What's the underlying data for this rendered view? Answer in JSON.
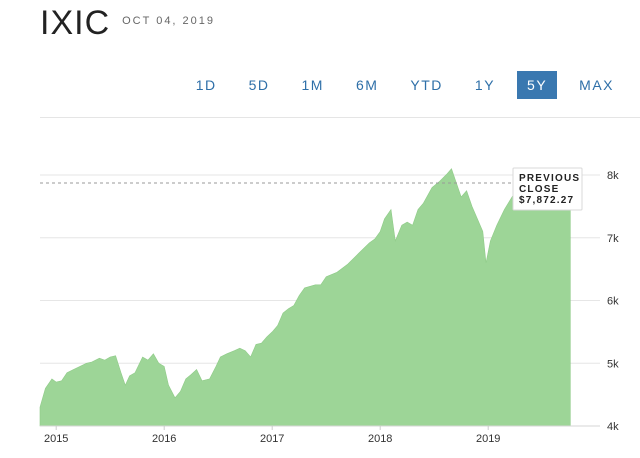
{
  "header": {
    "ticker": "IXIC",
    "date": "OCT 04, 2019"
  },
  "ranges": [
    {
      "label": "1D",
      "active": false
    },
    {
      "label": "5D",
      "active": false
    },
    {
      "label": "1M",
      "active": false
    },
    {
      "label": "6M",
      "active": false
    },
    {
      "label": "YTD",
      "active": false
    },
    {
      "label": "1Y",
      "active": false
    },
    {
      "label": "5Y",
      "active": true
    },
    {
      "label": "MAX",
      "active": false
    }
  ],
  "colors": {
    "area_fill": "#9dd597",
    "active_range": "#3a78b0",
    "range_text": "#2e6fa8"
  },
  "callout": {
    "line1": "PREVIOUS",
    "line2": "CLOSE",
    "value_label": "$7,872.27",
    "value": 7872.27
  },
  "chart_data": {
    "type": "area",
    "xlabel": "",
    "ylabel": "",
    "ylim": [
      4000,
      8000
    ],
    "xlim": [
      2014.85,
      2019.85
    ],
    "x_ticks": [
      2015,
      2016,
      2017,
      2018,
      2019
    ],
    "x_tick_labels": [
      "2015",
      "2016",
      "2017",
      "2018",
      "2019"
    ],
    "y_ticks": [
      4000,
      5000,
      6000,
      7000,
      8000
    ],
    "y_tick_labels": [
      "4k",
      "5k",
      "6k",
      "7k",
      "8k"
    ],
    "grid": "horizontal",
    "x": [
      2014.85,
      2014.9,
      2014.96,
      2015.0,
      2015.05,
      2015.1,
      2015.16,
      2015.22,
      2015.28,
      2015.33,
      2015.4,
      2015.45,
      2015.5,
      2015.55,
      2015.6,
      2015.64,
      2015.68,
      2015.73,
      2015.8,
      2015.85,
      2015.9,
      2015.95,
      2016.0,
      2016.04,
      2016.1,
      2016.15,
      2016.2,
      2016.25,
      2016.3,
      2016.35,
      2016.42,
      2016.48,
      2016.52,
      2016.58,
      2016.65,
      2016.7,
      2016.75,
      2016.8,
      2016.85,
      2016.9,
      2016.95,
      2017.0,
      2017.05,
      2017.1,
      2017.15,
      2017.2,
      2017.25,
      2017.3,
      2017.4,
      2017.45,
      2017.5,
      2017.6,
      2017.7,
      2017.8,
      2017.9,
      2017.95,
      2018.0,
      2018.04,
      2018.1,
      2018.14,
      2018.2,
      2018.25,
      2018.3,
      2018.35,
      2018.4,
      2018.48,
      2018.55,
      2018.62,
      2018.66,
      2018.7,
      2018.75,
      2018.8,
      2018.85,
      2018.9,
      2018.95,
      2018.98,
      2019.02,
      2019.08,
      2019.15,
      2019.22,
      2019.3,
      2019.35,
      2019.4,
      2019.45,
      2019.5,
      2019.55,
      2019.62,
      2019.7,
      2019.76
    ],
    "values": [
      4300,
      4600,
      4750,
      4700,
      4720,
      4850,
      4900,
      4950,
      5000,
      5020,
      5080,
      5050,
      5100,
      5120,
      4850,
      4650,
      4800,
      4850,
      5100,
      5050,
      5150,
      5000,
      4950,
      4650,
      4450,
      4550,
      4750,
      4820,
      4900,
      4720,
      4750,
      4950,
      5100,
      5150,
      5200,
      5240,
      5200,
      5100,
      5300,
      5320,
      5420,
      5500,
      5600,
      5800,
      5870,
      5920,
      6080,
      6200,
      6250,
      6250,
      6380,
      6450,
      6580,
      6750,
      6920,
      6980,
      7100,
      7300,
      7450,
      6950,
      7200,
      7250,
      7200,
      7450,
      7550,
      7800,
      7900,
      8020,
      8100,
      7900,
      7650,
      7750,
      7500,
      7300,
      7100,
      6600,
      6950,
      7200,
      7450,
      7650,
      7850,
      7950,
      7700,
      7600,
      7850,
      8100,
      7900,
      7950,
      7872
    ]
  }
}
